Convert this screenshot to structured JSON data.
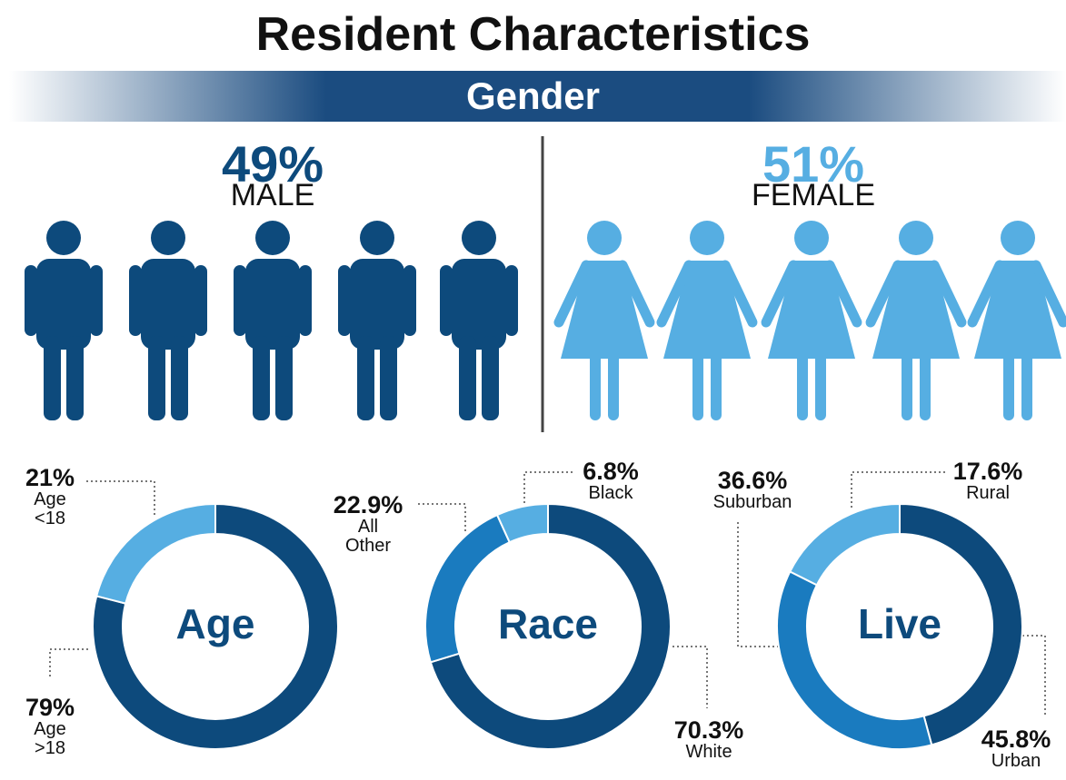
{
  "title": "Resident Characteristics",
  "section": "Gender",
  "gender": [
    {
      "name": "MALE",
      "value": 49,
      "value_label": "49%",
      "color": "#0d4a7c"
    },
    {
      "name": "FEMALE",
      "value": 51,
      "value_label": "51%",
      "color": "#56aee2"
    }
  ],
  "chart_data": [
    {
      "type": "pie",
      "title": "Age",
      "categories": [
        "Age\n<18",
        "Age\n>18"
      ],
      "values": [
        21,
        79
      ],
      "value_labels": [
        "21%",
        "79%"
      ],
      "colors": [
        "#56aee2",
        "#0d4a7c"
      ]
    },
    {
      "type": "pie",
      "title": "Race",
      "categories": [
        "Black",
        "All\nOther",
        "White"
      ],
      "values": [
        6.8,
        22.9,
        70.3
      ],
      "value_labels": [
        "6.8%",
        "22.9%",
        "70.3%"
      ],
      "colors": [
        "#56aee2",
        "#1a7bbf",
        "#0d4a7c"
      ]
    },
    {
      "type": "pie",
      "title": "Live",
      "categories": [
        "Rural",
        "Suburban",
        "Urban"
      ],
      "values": [
        17.6,
        36.6,
        45.8
      ],
      "value_labels": [
        "17.6%",
        "36.6%",
        "45.8%"
      ],
      "colors": [
        "#56aee2",
        "#1a7bbf",
        "#0d4a7c"
      ]
    }
  ]
}
